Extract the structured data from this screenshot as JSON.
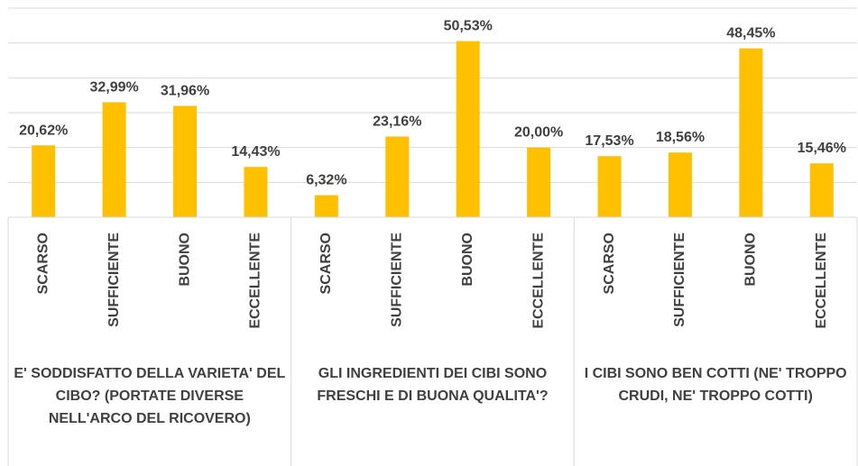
{
  "chart_data": {
    "type": "bar",
    "color": "#ffc000",
    "grid": true,
    "ylim": [
      0,
      60
    ],
    "yticks": [
      0,
      10,
      20,
      30,
      40,
      50,
      60
    ],
    "groups": [
      {
        "label": "E' SODDISFATTO DELLA VARIETA' DEL CIBO? (PORTATE DIVERSE NELL'ARCO DEL RICOVERO)",
        "categories": [
          "SCARSO",
          "SUFFICIENTE",
          "BUONO",
          "ECCELLENTE"
        ],
        "values": [
          20.62,
          32.99,
          31.96,
          14.43
        ],
        "value_labels": [
          "20,62%",
          "32,99%",
          "31,96%",
          "14,43%"
        ]
      },
      {
        "label": "GLI INGREDIENTI DEI CIBI SONO FRESCHI E DI BUONA QUALITA'?",
        "categories": [
          "SCARSO",
          "SUFFICIENTE",
          "BUONO",
          "ECCELLENTE"
        ],
        "values": [
          6.32,
          23.16,
          50.53,
          20.0
        ],
        "value_labels": [
          "6,32%",
          "23,16%",
          "50,53%",
          "20,00%"
        ]
      },
      {
        "label": "I CIBI SONO BEN COTTI (NE' TROPPO CRUDI, NE' TROPPO COTTI)",
        "categories": [
          "SCARSO",
          "SUFFICIENTE",
          "BUONO",
          "ECCELLENTE"
        ],
        "values": [
          17.53,
          18.56,
          48.45,
          15.46
        ],
        "value_labels": [
          "17,53%",
          "18,56%",
          "48,45%",
          "15,46%"
        ]
      }
    ]
  }
}
